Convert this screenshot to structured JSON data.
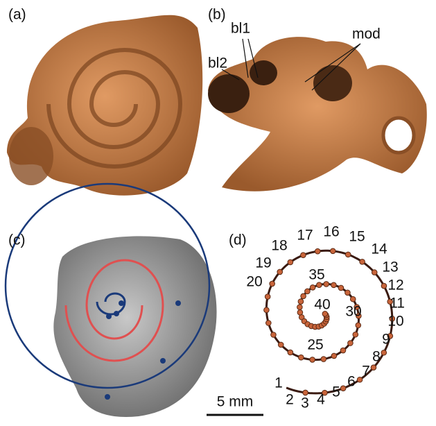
{
  "panels": {
    "a": {
      "label": "(a)"
    },
    "b": {
      "label": "(b)",
      "annotations": [
        "bl1",
        "bl2",
        "mod"
      ]
    },
    "c": {
      "label": "(c)"
    },
    "d": {
      "label": "(d)",
      "point_labels": [
        1,
        2,
        3,
        4,
        5,
        6,
        7,
        8,
        9,
        10,
        11,
        12,
        13,
        14,
        15,
        16,
        17,
        18,
        19,
        20,
        25,
        30,
        35,
        40
      ]
    }
  },
  "scale_bar": "5 mm"
}
